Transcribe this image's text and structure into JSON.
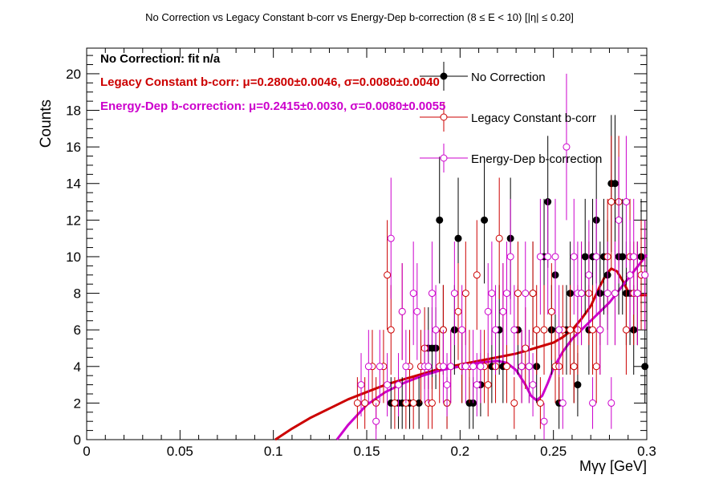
{
  "chart_data": {
    "type": "scatter",
    "title": "No Correction vs Legacy Constant b-corr vs Energy-Dep b-correction   (8 ≤ E < 10)   [|η| ≤ 0.20]",
    "xlabel": "Mγγ [GeV]",
    "ylabel": "Counts",
    "xlim": [
      0,
      0.3
    ],
    "ylim": [
      0,
      21.4
    ],
    "x_ticks": [
      "0",
      "0.05",
      "0.1",
      "0.15",
      "0.2",
      "0.25",
      "0.3"
    ],
    "y_ticks": [
      "0",
      "2",
      "4",
      "6",
      "8",
      "10",
      "12",
      "14",
      "16",
      "18",
      "20"
    ],
    "legend_position": "top-right",
    "stats_text": [
      {
        "label": "No Correction: fit n/a",
        "color": "#000000"
      },
      {
        "label": "Legacy Constant b-corr: μ=0.2800±0.0046, σ=0.0080±0.0040",
        "color": "#cc0000"
      },
      {
        "label": "Energy-Dep b-correction: μ=0.2415±0.0030, σ=0.0080±0.0055",
        "color": "#cc00cc"
      }
    ],
    "series": [
      {
        "name": "No Correction",
        "color": "#000000",
        "marker": "filled-circle",
        "x": [
          0.163,
          0.167,
          0.169,
          0.173,
          0.178,
          0.183,
          0.185,
          0.187,
          0.189,
          0.191,
          0.193,
          0.197,
          0.199,
          0.201,
          0.205,
          0.207,
          0.211,
          0.213,
          0.217,
          0.221,
          0.223,
          0.227,
          0.231,
          0.233,
          0.237,
          0.239,
          0.241,
          0.245,
          0.247,
          0.249,
          0.251,
          0.253,
          0.257,
          0.259,
          0.261,
          0.263,
          0.267,
          0.269,
          0.271,
          0.273,
          0.275,
          0.277,
          0.279,
          0.281,
          0.283,
          0.285,
          0.287,
          0.289,
          0.291,
          0.293,
          0.295,
          0.297,
          0.299
        ],
        "y": [
          2,
          2,
          2,
          2,
          2,
          5,
          5,
          5,
          12,
          6,
          2,
          6,
          11,
          4,
          2,
          2,
          3,
          12,
          4,
          6,
          4,
          11,
          6,
          4,
          4,
          8,
          4,
          10,
          13,
          6,
          9,
          2,
          6,
          8,
          4,
          3,
          10,
          6,
          10,
          12,
          8,
          10,
          9,
          14,
          14,
          10,
          10,
          8,
          8,
          6,
          8,
          10,
          4
        ]
      },
      {
        "name": "Legacy Constant b-corr",
        "color": "#cc0000",
        "marker": "open-circle",
        "x": [
          0.145,
          0.149,
          0.153,
          0.155,
          0.159,
          0.161,
          0.163,
          0.165,
          0.169,
          0.171,
          0.173,
          0.175,
          0.179,
          0.181,
          0.183,
          0.185,
          0.189,
          0.191,
          0.193,
          0.195,
          0.199,
          0.201,
          0.203,
          0.205,
          0.209,
          0.211,
          0.213,
          0.215,
          0.219,
          0.221,
          0.223,
          0.225,
          0.229,
          0.231,
          0.233,
          0.235,
          0.239,
          0.241,
          0.243,
          0.245,
          0.249,
          0.251,
          0.253,
          0.255,
          0.259,
          0.261,
          0.263,
          0.265,
          0.269,
          0.271,
          0.273,
          0.275,
          0.279,
          0.281,
          0.283,
          0.285,
          0.289,
          0.291,
          0.293,
          0.295,
          0.297,
          0.299
        ],
        "y": [
          2,
          2,
          4,
          2,
          4,
          9,
          6,
          2,
          7,
          2,
          4,
          2,
          4,
          5,
          2,
          2,
          4,
          6,
          2,
          4,
          7,
          4,
          8,
          4,
          9,
          4,
          4,
          3,
          4,
          11,
          7,
          4,
          2,
          8,
          4,
          5,
          8,
          6,
          2,
          6,
          7,
          4,
          4,
          6,
          6,
          4,
          6,
          8,
          8,
          6,
          4,
          6,
          10,
          13,
          8,
          13,
          6,
          10,
          8,
          8,
          9,
          9
        ]
      },
      {
        "name": "Energy-Dep b-correction",
        "color": "#cc00cc",
        "marker": "open-circle",
        "x": [
          0.147,
          0.151,
          0.155,
          0.157,
          0.161,
          0.163,
          0.167,
          0.169,
          0.171,
          0.175,
          0.177,
          0.181,
          0.183,
          0.185,
          0.187,
          0.191,
          0.193,
          0.195,
          0.197,
          0.201,
          0.203,
          0.207,
          0.209,
          0.211,
          0.215,
          0.217,
          0.219,
          0.223,
          0.225,
          0.227,
          0.229,
          0.233,
          0.235,
          0.237,
          0.239,
          0.243,
          0.245,
          0.247,
          0.251,
          0.253,
          0.255,
          0.257,
          0.261,
          0.263,
          0.265,
          0.269,
          0.271,
          0.273,
          0.275,
          0.279,
          0.281,
          0.283,
          0.285,
          0.289,
          0.291,
          0.293,
          0.295,
          0.299
        ],
        "y": [
          3,
          4,
          1,
          4,
          3,
          11,
          3,
          7,
          4,
          8,
          7,
          4,
          4,
          8,
          6,
          4,
          3,
          4,
          8,
          6,
          4,
          4,
          3,
          4,
          7,
          8,
          6,
          7,
          8,
          10,
          6,
          4,
          8,
          4,
          3,
          10,
          1,
          10,
          10,
          6,
          2,
          16,
          10,
          8,
          8,
          9,
          2,
          10,
          6,
          8,
          2,
          8,
          12,
          13,
          9,
          10,
          8,
          9
        ]
      }
    ],
    "fits": [
      {
        "name": "Legacy Constant b-corr fit",
        "color": "#cc0000",
        "x": [
          0.101,
          0.11,
          0.12,
          0.13,
          0.14,
          0.15,
          0.16,
          0.17,
          0.18,
          0.19,
          0.2,
          0.21,
          0.22,
          0.23,
          0.24,
          0.25,
          0.255,
          0.26,
          0.265,
          0.27,
          0.275,
          0.278,
          0.281,
          0.284,
          0.287,
          0.29,
          0.293,
          0.296,
          0.3
        ],
        "y": [
          0,
          0.6,
          1.2,
          1.7,
          2.2,
          2.6,
          3.0,
          3.3,
          3.6,
          3.9,
          4.1,
          4.3,
          4.5,
          4.7,
          5.0,
          5.3,
          5.6,
          6.0,
          6.6,
          7.3,
          8.4,
          9.0,
          9.35,
          9.2,
          8.7,
          8.1,
          7.9,
          7.9,
          7.9
        ]
      },
      {
        "name": "Energy-Dep b-correction fit",
        "color": "#cc00cc",
        "x": [
          0.134,
          0.14,
          0.15,
          0.16,
          0.17,
          0.18,
          0.19,
          0.2,
          0.21,
          0.22,
          0.225,
          0.23,
          0.235,
          0.238,
          0.241,
          0.244,
          0.247,
          0.25,
          0.255,
          0.26,
          0.27,
          0.28,
          0.29,
          0.3
        ],
        "y": [
          0,
          0.8,
          1.9,
          2.6,
          3.1,
          3.5,
          3.8,
          4.0,
          4.2,
          4.3,
          4.2,
          3.8,
          3.0,
          2.4,
          2.15,
          2.4,
          3.1,
          3.9,
          4.8,
          5.5,
          6.5,
          7.5,
          8.8,
          10.1
        ]
      }
    ]
  }
}
